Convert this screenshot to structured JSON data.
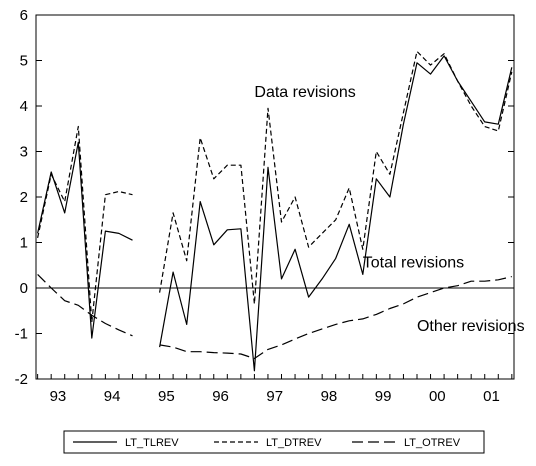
{
  "chart_data": {
    "type": "line",
    "ylim": [
      -2,
      6
    ],
    "y_ticks": [
      "-2",
      "-1",
      "0",
      "1",
      "2",
      "3",
      "4",
      "5",
      "6"
    ],
    "x_start": 1993.0,
    "x_end": 2001.5,
    "x_tick_labels": [
      "93",
      "94",
      "95",
      "96",
      "97",
      "98",
      "99",
      "00",
      "01"
    ],
    "zero_line": true,
    "annotations": [
      {
        "text": "Data revisions",
        "x": 1997.0,
        "y": 4.2
      },
      {
        "text": "Total revisions",
        "x": 1999.0,
        "y": 0.45
      },
      {
        "text": "Other revisions",
        "x": 2000.0,
        "y": -0.95
      }
    ],
    "series": [
      {
        "name": "LT_TLREV",
        "style": "solid",
        "points": [
          [
            1993.0,
            1.2
          ],
          [
            1993.25,
            2.55
          ],
          [
            1993.5,
            1.65
          ],
          [
            1993.75,
            3.2
          ],
          [
            1994.0,
            -1.1
          ],
          [
            1994.25,
            1.25
          ],
          [
            1994.5,
            1.2
          ],
          [
            1994.75,
            1.05
          ],
          [
            1995.25,
            -1.3
          ],
          [
            1995.5,
            0.35
          ],
          [
            1995.75,
            -0.8
          ],
          [
            1996.0,
            1.9
          ],
          [
            1996.25,
            0.95
          ],
          [
            1996.5,
            1.28
          ],
          [
            1996.75,
            1.3
          ],
          [
            1997.0,
            -1.82
          ],
          [
            1997.25,
            2.65
          ],
          [
            1997.5,
            0.2
          ],
          [
            1997.75,
            0.85
          ],
          [
            1998.0,
            -0.2
          ],
          [
            1998.25,
            0.2
          ],
          [
            1998.5,
            0.65
          ],
          [
            1998.75,
            1.4
          ],
          [
            1999.0,
            0.3
          ],
          [
            1999.25,
            2.4
          ],
          [
            1999.5,
            2.0
          ],
          [
            1999.75,
            3.6
          ],
          [
            2000.0,
            4.95
          ],
          [
            2000.25,
            4.7
          ],
          [
            2000.5,
            5.1
          ],
          [
            2000.75,
            4.55
          ],
          [
            2001.0,
            4.1
          ],
          [
            2001.25,
            3.65
          ],
          [
            2001.5,
            3.6
          ],
          [
            2001.75,
            4.85
          ]
        ]
      },
      {
        "name": "LT_DTREV",
        "style": "short-dash",
        "points": [
          [
            1993.0,
            1.1
          ],
          [
            1993.25,
            2.5
          ],
          [
            1993.5,
            1.9
          ],
          [
            1993.75,
            3.55
          ],
          [
            1994.0,
            -0.75
          ],
          [
            1994.25,
            2.05
          ],
          [
            1994.5,
            2.12
          ],
          [
            1994.75,
            2.05
          ],
          [
            1995.25,
            -0.1
          ],
          [
            1995.5,
            1.65
          ],
          [
            1995.75,
            0.6
          ],
          [
            1996.0,
            3.3
          ],
          [
            1996.25,
            2.4
          ],
          [
            1996.5,
            2.7
          ],
          [
            1996.75,
            2.7
          ],
          [
            1997.0,
            -0.35
          ],
          [
            1997.25,
            3.95
          ],
          [
            1997.5,
            1.45
          ],
          [
            1997.75,
            2.0
          ],
          [
            1998.0,
            0.9
          ],
          [
            1998.25,
            1.2
          ],
          [
            1998.5,
            1.5
          ],
          [
            1998.75,
            2.2
          ],
          [
            1999.0,
            0.85
          ],
          [
            1999.25,
            3.0
          ],
          [
            1999.5,
            2.5
          ],
          [
            1999.75,
            3.85
          ],
          [
            2000.0,
            5.2
          ],
          [
            2000.25,
            4.9
          ],
          [
            2000.5,
            5.15
          ],
          [
            2000.75,
            4.55
          ],
          [
            2001.0,
            4.0
          ],
          [
            2001.25,
            3.55
          ],
          [
            2001.5,
            3.45
          ],
          [
            2001.75,
            4.75
          ]
        ]
      },
      {
        "name": "LT_OTREV",
        "style": "long-dash",
        "points": [
          [
            1993.0,
            0.3
          ],
          [
            1993.25,
            0.0
          ],
          [
            1993.5,
            -0.28
          ],
          [
            1993.75,
            -0.38
          ],
          [
            1994.0,
            -0.6
          ],
          [
            1994.25,
            -0.78
          ],
          [
            1994.5,
            -0.92
          ],
          [
            1994.75,
            -1.05
          ],
          [
            1995.25,
            -1.25
          ],
          [
            1995.5,
            -1.3
          ],
          [
            1995.75,
            -1.4
          ],
          [
            1996.0,
            -1.4
          ],
          [
            1996.25,
            -1.42
          ],
          [
            1996.5,
            -1.43
          ],
          [
            1996.75,
            -1.45
          ],
          [
            1997.0,
            -1.55
          ],
          [
            1997.25,
            -1.35
          ],
          [
            1997.5,
            -1.25
          ],
          [
            1997.75,
            -1.12
          ],
          [
            1998.0,
            -1.0
          ],
          [
            1998.25,
            -0.9
          ],
          [
            1998.5,
            -0.8
          ],
          [
            1998.75,
            -0.72
          ],
          [
            1999.0,
            -0.68
          ],
          [
            1999.25,
            -0.58
          ],
          [
            1999.5,
            -0.45
          ],
          [
            1999.75,
            -0.35
          ],
          [
            2000.0,
            -0.2
          ],
          [
            2000.25,
            -0.1
          ],
          [
            2000.5,
            0.0
          ],
          [
            2000.75,
            0.05
          ],
          [
            2001.0,
            0.15
          ],
          [
            2001.25,
            0.15
          ],
          [
            2001.5,
            0.18
          ],
          [
            2001.75,
            0.25
          ]
        ]
      }
    ],
    "legend": {
      "placement": "bottom",
      "entries": [
        "LT_TLREV",
        "LT_DTREV",
        "LT_OTREV"
      ]
    }
  }
}
